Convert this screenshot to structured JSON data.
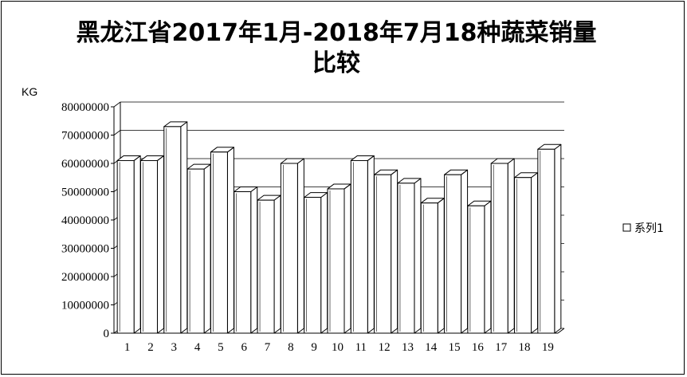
{
  "chart_data": {
    "type": "bar",
    "title": "黑龙江省2017年1月-2018年7月18种蔬菜销量比较",
    "title_lines": [
      "黑龙江省2017年1月-2018年7月18种蔬菜销量",
      "比较"
    ],
    "ylabel": "KG",
    "xlabel": "",
    "categories": [
      "1",
      "2",
      "3",
      "4",
      "5",
      "6",
      "7",
      "8",
      "9",
      "10",
      "11",
      "12",
      "13",
      "14",
      "15",
      "16",
      "17",
      "18",
      "19"
    ],
    "series": [
      {
        "name": "系列1",
        "values": [
          61000000,
          61000000,
          73000000,
          58000000,
          64000000,
          50000000,
          47000000,
          60000000,
          48000000,
          51000000,
          61000000,
          56000000,
          53000000,
          46000000,
          56000000,
          45000000,
          60000000,
          55000000,
          65000000
        ]
      }
    ],
    "ylim": [
      0,
      80000000
    ],
    "yticks": [
      0,
      10000000,
      20000000,
      30000000,
      40000000,
      50000000,
      60000000,
      70000000,
      80000000
    ],
    "ytick_labels": [
      "0",
      "10000000",
      "20000000",
      "30000000",
      "40000000",
      "50000000",
      "60000000",
      "70000000",
      "80000000"
    ],
    "grid": true,
    "legend": "right",
    "style": "3d-clustered-column",
    "colors": {
      "bar_fill": "#ffffff",
      "bar_edge": "#000000",
      "gridline": "#000000"
    }
  }
}
